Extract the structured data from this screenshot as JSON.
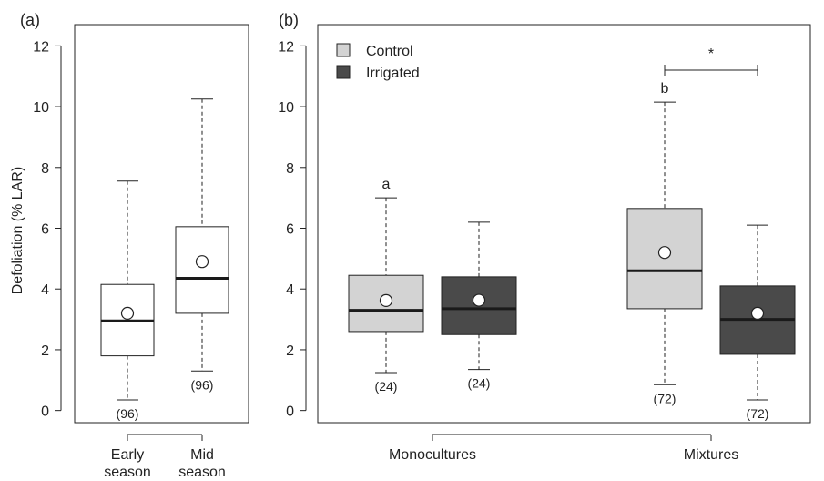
{
  "chart_data": [
    {
      "type": "boxplot",
      "panel_label": "(a)",
      "ylabel": "Defoliation (% LAR)",
      "ylim": [
        -0.4,
        12.7
      ],
      "yticks": [
        0,
        2,
        4,
        6,
        8,
        10,
        12
      ],
      "grid": false,
      "categories": [
        {
          "lines": [
            "Early",
            "season"
          ]
        },
        {
          "lines": [
            "Mid",
            "season"
          ]
        }
      ],
      "series": [
        {
          "color": "#ffffff",
          "boxes": [
            {
              "category": 0,
              "min": 0.35,
              "q1": 1.8,
              "median": 2.95,
              "q3": 4.15,
              "max": 7.55,
              "mean": 3.2,
              "n_label": "(96)",
              "n_pos": "below"
            },
            {
              "category": 1,
              "min": 1.3,
              "q1": 3.2,
              "median": 4.35,
              "q3": 6.05,
              "max": 10.25,
              "mean": 4.9,
              "n_label": "(96)",
              "n_pos": "below"
            }
          ]
        }
      ]
    },
    {
      "type": "boxplot",
      "panel_label": "(b)",
      "ylim": [
        -0.4,
        12.7
      ],
      "yticks": [
        0,
        2,
        4,
        6,
        8,
        10,
        12
      ],
      "grid": false,
      "categories": [
        {
          "lines": [
            "Monocultures"
          ]
        },
        {
          "lines": [
            "Mixtures"
          ]
        }
      ],
      "legend": {
        "position": "top-left"
      },
      "series": [
        {
          "name": "Control",
          "color": "#d3d3d3",
          "boxes": [
            {
              "category": 0,
              "min": 1.25,
              "q1": 2.6,
              "median": 3.3,
              "q3": 4.45,
              "max": 7.0,
              "mean": 3.62,
              "n_label": "(24)",
              "n_pos": "below",
              "letter": "a"
            },
            {
              "category": 1,
              "min": 0.85,
              "q1": 3.35,
              "median": 4.6,
              "q3": 6.65,
              "max": 10.15,
              "mean": 5.2,
              "n_label": "(72)",
              "n_pos": "below",
              "letter": "b"
            }
          ]
        },
        {
          "name": "Irrigated",
          "color": "#4a4a4a",
          "boxes": [
            {
              "category": 0,
              "min": 1.35,
              "q1": 2.5,
              "median": 3.35,
              "q3": 4.4,
              "max": 6.2,
              "mean": 3.63,
              "n_label": "(24)",
              "n_pos": "below"
            },
            {
              "category": 1,
              "min": 0.35,
              "q1": 1.85,
              "median": 3.0,
              "q3": 4.1,
              "max": 6.1,
              "mean": 3.2,
              "n_label": "(72)",
              "n_pos": "below"
            }
          ]
        }
      ],
      "annotations": [
        {
          "type": "significance",
          "category": 1,
          "symbol": "*",
          "y": 11.2
        }
      ]
    }
  ]
}
